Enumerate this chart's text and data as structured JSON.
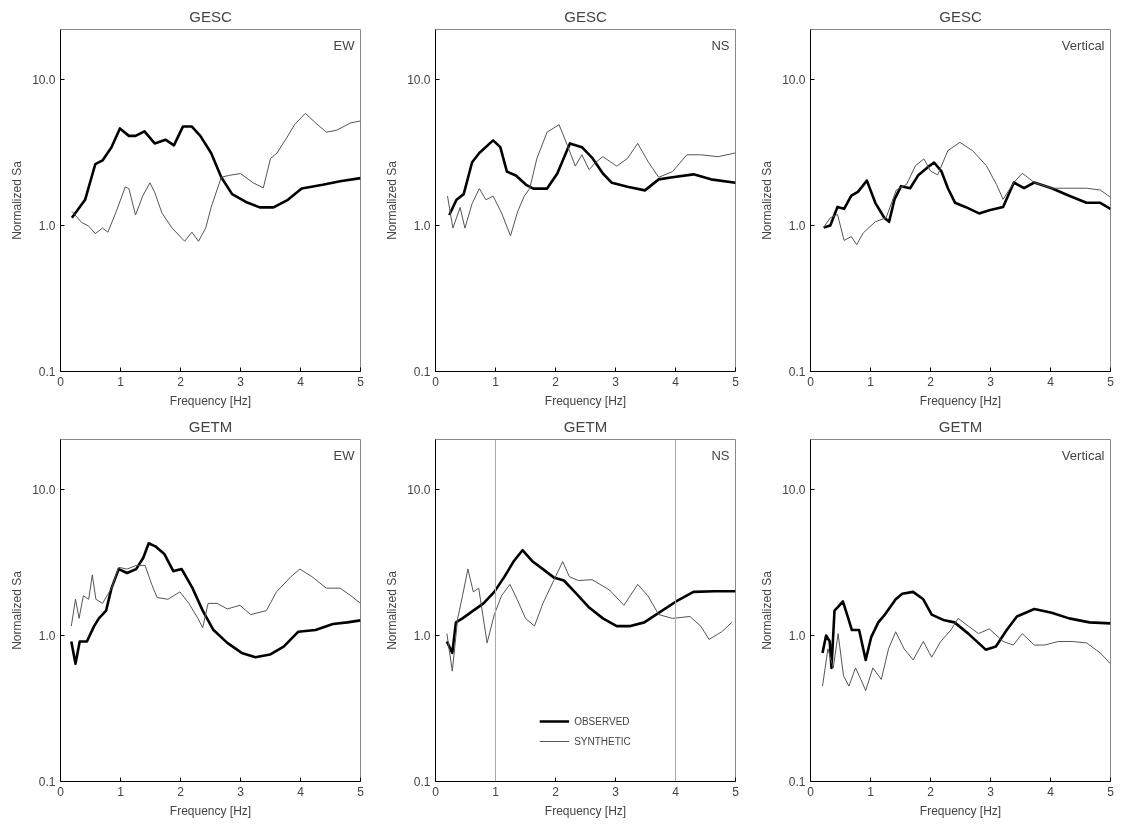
{
  "chart_data": [
    {
      "type": "line",
      "title": "GESC",
      "xlabel": "Frequency [Hz]",
      "ylabel": "Normalized Sa",
      "annotations": [
        "EW"
      ],
      "xlim": [
        0,
        5
      ],
      "ylim": [
        0.1,
        22
      ],
      "xticks": [
        0,
        1,
        2,
        3,
        4,
        5
      ],
      "yticks": [
        {
          "value": 0.1,
          "label": "0.1"
        },
        {
          "value": 1,
          "label": "1.0"
        },
        {
          "value": 10,
          "label": "10.0"
        }
      ],
      "log": true,
      "series": [
        {
          "color": "#000000",
          "x": [
            0.19,
            0.41,
            0.58,
            0.7,
            0.85,
            0.99,
            1.14,
            1.25,
            1.4,
            1.57,
            1.75,
            1.89,
            2.04,
            2.19,
            2.33,
            2.51,
            2.68,
            2.86,
            3.09,
            3.32,
            3.55,
            3.79,
            4.02,
            4.37,
            4.66,
            5.0
          ],
          "values": [
            1.13,
            1.5,
            2.63,
            2.79,
            3.44,
            4.62,
            4.11,
            4.11,
            4.41,
            3.65,
            3.87,
            3.54,
            4.76,
            4.76,
            4.11,
            3.14,
            2.14,
            1.64,
            1.45,
            1.33,
            1.33,
            1.5,
            1.79,
            1.9,
            2.01,
            2.11
          ]
        },
        {
          "color": "#555555",
          "x": [
            0.19,
            0.35,
            0.47,
            0.58,
            0.7,
            0.79,
            0.93,
            1.08,
            1.14,
            1.25,
            1.37,
            1.49,
            1.57,
            1.69,
            1.86,
            2.07,
            2.19,
            2.3,
            2.42,
            2.51,
            2.68,
            2.8,
            3.0,
            3.21,
            3.38,
            3.5,
            3.61,
            3.79,
            3.9,
            4.08,
            4.25,
            4.43,
            4.6,
            4.84,
            5.0
          ],
          "values": [
            1.25,
            1.05,
            0.99,
            0.88,
            0.96,
            0.9,
            1.25,
            1.84,
            1.79,
            1.18,
            1.59,
            1.96,
            1.69,
            1.22,
            0.96,
            0.78,
            0.9,
            0.78,
            0.96,
            1.33,
            2.14,
            2.2,
            2.27,
            1.96,
            1.81,
            2.88,
            3.14,
            4.11,
            4.9,
            5.86,
            5.05,
            4.36,
            4.49,
            5.05,
            5.2
          ]
        }
      ]
    },
    {
      "type": "line",
      "title": "GESC",
      "xlabel": "Frequency [Hz]",
      "ylabel": "Normalized Sa",
      "annotations": [
        "NS"
      ],
      "xlim": [
        0,
        5
      ],
      "ylim": [
        0.1,
        22
      ],
      "xticks": [
        0,
        1,
        2,
        3,
        4,
        5
      ],
      "yticks": [
        {
          "value": 0.1,
          "label": "0.1"
        },
        {
          "value": 1,
          "label": "1.0"
        },
        {
          "value": 10,
          "label": "10.0"
        }
      ],
      "log": true,
      "series": [
        {
          "color": "#000000",
          "x": [
            0.23,
            0.35,
            0.47,
            0.61,
            0.73,
            0.96,
            1.08,
            1.19,
            1.34,
            1.51,
            1.63,
            1.86,
            2.03,
            2.24,
            2.44,
            2.62,
            2.79,
            2.94,
            3.2,
            3.49,
            3.72,
            3.95,
            4.3,
            4.59,
            5.0
          ],
          "values": [
            1.18,
            1.5,
            1.64,
            2.71,
            3.14,
            3.83,
            3.44,
            2.34,
            2.2,
            1.9,
            1.79,
            1.79,
            2.27,
            3.65,
            3.44,
            2.88,
            2.27,
            1.96,
            1.84,
            1.74,
            2.07,
            2.14,
            2.24,
            2.07,
            1.96
          ]
        },
        {
          "color": "#555555",
          "x": [
            0.2,
            0.29,
            0.41,
            0.49,
            0.61,
            0.73,
            0.84,
            0.96,
            1.1,
            1.25,
            1.37,
            1.48,
            1.57,
            1.69,
            1.86,
            2.06,
            2.21,
            2.33,
            2.44,
            2.56,
            2.67,
            2.79,
            3.02,
            3.2,
            3.37,
            3.55,
            3.72,
            3.95,
            4.19,
            4.42,
            4.71,
            5.0
          ],
          "values": [
            1.59,
            0.96,
            1.33,
            0.96,
            1.41,
            1.79,
            1.5,
            1.59,
            1.22,
            0.85,
            1.25,
            1.59,
            1.79,
            2.88,
            4.36,
            4.9,
            3.44,
            2.55,
            3.05,
            2.41,
            2.71,
            2.96,
            2.55,
            2.88,
            3.65,
            2.71,
            2.14,
            2.34,
            3.05,
            3.05,
            2.96,
            3.14
          ]
        }
      ]
    },
    {
      "type": "line",
      "title": "GESC",
      "xlabel": "Frequency [Hz]",
      "ylabel": "Normalized Sa",
      "annotations": [
        "Vertical"
      ],
      "xlim": [
        0,
        5
      ],
      "ylim": [
        0.1,
        22
      ],
      "xticks": [
        0,
        1,
        2,
        3,
        4,
        5
      ],
      "yticks": [
        {
          "value": 0.1,
          "label": "0.1"
        },
        {
          "value": 1,
          "label": "1.0"
        },
        {
          "value": 10,
          "label": "10.0"
        }
      ],
      "log": true,
      "series": [
        {
          "color": "#000000",
          "x": [
            0.22,
            0.33,
            0.45,
            0.56,
            0.68,
            0.79,
            0.94,
            1.08,
            1.23,
            1.31,
            1.4,
            1.51,
            1.66,
            1.8,
            1.95,
            2.06,
            2.18,
            2.29,
            2.41,
            2.58,
            2.81,
            2.98,
            3.21,
            3.39,
            3.56,
            3.73,
            4.02,
            4.31,
            4.6,
            4.83,
            5.0
          ],
          "values": [
            0.97,
            1.0,
            1.34,
            1.3,
            1.6,
            1.7,
            2.03,
            1.43,
            1.13,
            1.06,
            1.51,
            1.86,
            1.8,
            2.22,
            2.5,
            2.7,
            2.36,
            1.8,
            1.43,
            1.34,
            1.21,
            1.27,
            1.34,
            1.97,
            1.8,
            1.97,
            1.8,
            1.6,
            1.43,
            1.43,
            1.3
          ]
        },
        {
          "color": "#555555",
          "x": [
            0.22,
            0.33,
            0.45,
            0.56,
            0.68,
            0.77,
            0.88,
            1.08,
            1.26,
            1.43,
            1.6,
            1.75,
            1.89,
            2.0,
            2.12,
            2.29,
            2.49,
            2.7,
            2.93,
            3.1,
            3.21,
            3.39,
            3.53,
            3.73,
            4.02,
            4.31,
            4.6,
            4.83,
            5.0
          ],
          "values": [
            0.97,
            1.13,
            1.19,
            0.79,
            0.84,
            0.74,
            0.89,
            1.06,
            1.13,
            1.75,
            1.91,
            2.57,
            2.86,
            2.36,
            2.22,
            3.26,
            3.71,
            3.26,
            2.57,
            1.91,
            1.51,
            1.97,
            2.28,
            1.97,
            1.8,
            1.8,
            1.8,
            1.75,
            1.56
          ]
        }
      ]
    },
    {
      "type": "line",
      "title": "GETM",
      "xlabel": "Frequency [Hz]",
      "ylabel": "Normalized Sa",
      "annotations": [
        "EW"
      ],
      "xlim": [
        0,
        5
      ],
      "ylim": [
        0.1,
        22
      ],
      "xticks": [
        0,
        1,
        2,
        3,
        4,
        5
      ],
      "yticks": [
        {
          "value": 0.1,
          "label": "0.1"
        },
        {
          "value": 1,
          "label": "1.0"
        },
        {
          "value": 10,
          "label": "10.0"
        }
      ],
      "log": true,
      "series": [
        {
          "color": "#000000",
          "x": [
            0.18,
            0.25,
            0.32,
            0.44,
            0.56,
            0.64,
            0.76,
            0.85,
            0.97,
            1.11,
            1.26,
            1.38,
            1.47,
            1.58,
            1.73,
            1.88,
            2.02,
            2.2,
            2.37,
            2.55,
            2.78,
            3.02,
            3.25,
            3.49,
            3.72,
            3.96,
            4.25,
            4.54,
            4.78,
            5.0
          ],
          "values": [
            0.91,
            0.64,
            0.91,
            0.91,
            1.16,
            1.31,
            1.48,
            2.11,
            2.85,
            2.68,
            2.85,
            3.41,
            4.28,
            4.08,
            3.62,
            2.76,
            2.85,
            2.11,
            1.48,
            1.09,
            0.89,
            0.76,
            0.71,
            0.74,
            0.84,
            1.06,
            1.09,
            1.2,
            1.23,
            1.27
          ]
        },
        {
          "color": "#555555",
          "x": [
            0.18,
            0.25,
            0.31,
            0.38,
            0.47,
            0.53,
            0.59,
            0.7,
            0.85,
            0.97,
            1.11,
            1.26,
            1.41,
            1.52,
            1.61,
            1.79,
            1.99,
            2.14,
            2.29,
            2.37,
            2.46,
            2.61,
            2.78,
            2.99,
            3.17,
            3.43,
            3.6,
            3.84,
            3.99,
            4.19,
            4.43,
            4.66,
            4.84,
            5.0
          ],
          "values": [
            1.16,
            1.77,
            1.31,
            1.87,
            1.77,
            2.6,
            1.77,
            1.66,
            2.11,
            2.93,
            2.85,
            3.02,
            3.02,
            2.24,
            1.82,
            1.77,
            1.99,
            1.66,
            1.31,
            1.13,
            1.66,
            1.66,
            1.52,
            1.61,
            1.39,
            1.48,
            1.99,
            2.53,
            2.85,
            2.53,
            2.11,
            2.11,
            1.87,
            1.66
          ]
        }
      ]
    },
    {
      "type": "line",
      "title": "GETM",
      "xlabel": "Frequency [Hz]",
      "ylabel": "Normalized Sa",
      "annotations": [
        "NS"
      ],
      "xlim": [
        0,
        5
      ],
      "ylim": [
        0.1,
        22
      ],
      "xticks": [
        0,
        1,
        2,
        3,
        4,
        5
      ],
      "yticks": [
        {
          "value": 0.1,
          "label": "0.1"
        },
        {
          "value": 1,
          "label": "1.0"
        },
        {
          "value": 10,
          "label": "10.0"
        }
      ],
      "log": true,
      "legend": "bottom",
      "ref_lines": [
        {
          "axis": "x",
          "value": 1,
          "color": "#aaaaaa"
        },
        {
          "axis": "x",
          "value": 4,
          "color": "#aaaaaa"
        }
      ],
      "series": [
        {
          "name": "OBSERVED",
          "color": "#000000",
          "x": [
            0.19,
            0.28,
            0.34,
            0.45,
            0.63,
            0.8,
            0.98,
            1.15,
            1.3,
            1.45,
            1.62,
            1.79,
            1.97,
            2.14,
            2.32,
            2.55,
            2.79,
            3.02,
            3.25,
            3.48,
            3.72,
            4.01,
            4.3,
            4.65,
            5.0
          ],
          "values": [
            0.91,
            0.76,
            1.23,
            1.31,
            1.48,
            1.66,
            1.99,
            2.53,
            3.21,
            3.84,
            3.21,
            2.85,
            2.5,
            2.38,
            1.99,
            1.57,
            1.31,
            1.16,
            1.16,
            1.23,
            1.43,
            1.71,
            1.99,
            2.01,
            2.01
          ]
        },
        {
          "name": "SYNTHETIC",
          "color": "#555555",
          "x": [
            0.19,
            0.28,
            0.37,
            0.45,
            0.54,
            0.63,
            0.72,
            0.86,
            0.98,
            1.1,
            1.24,
            1.36,
            1.5,
            1.65,
            1.79,
            1.97,
            2.12,
            2.23,
            2.38,
            2.61,
            2.9,
            3.14,
            3.37,
            3.54,
            3.72,
            3.95,
            4.24,
            4.42,
            4.56,
            4.77,
            4.94
          ],
          "values": [
            1.03,
            0.57,
            1.31,
            1.87,
            2.85,
            1.99,
            2.11,
            0.89,
            1.39,
            1.87,
            2.24,
            1.77,
            1.31,
            1.16,
            1.66,
            2.38,
            3.21,
            2.53,
            2.38,
            2.41,
            2.05,
            1.61,
            2.24,
            1.87,
            1.39,
            1.31,
            1.35,
            1.16,
            0.94,
            1.06,
            1.23
          ]
        }
      ]
    },
    {
      "type": "line",
      "title": "GETM",
      "xlabel": "Frequency [Hz]",
      "ylabel": "Normalized Sa",
      "annotations": [
        "Vertical"
      ],
      "xlim": [
        0,
        5
      ],
      "ylim": [
        0.1,
        22
      ],
      "xticks": [
        0,
        1,
        2,
        3,
        4,
        5
      ],
      "yticks": [
        {
          "value": 0.1,
          "label": "0.1"
        },
        {
          "value": 1,
          "label": "1.0"
        },
        {
          "value": 10,
          "label": "10.0"
        }
      ],
      "log": true,
      "series": [
        {
          "color": "#000000",
          "x": [
            0.2,
            0.26,
            0.32,
            0.35,
            0.4,
            0.46,
            0.54,
            0.61,
            0.69,
            0.81,
            0.92,
            1.01,
            1.13,
            1.24,
            1.42,
            1.53,
            1.71,
            1.88,
            2.02,
            2.23,
            2.4,
            2.63,
            2.92,
            3.09,
            3.27,
            3.44,
            3.73,
            4.02,
            4.31,
            4.65,
            5.0
          ],
          "values": [
            0.76,
            1.0,
            0.91,
            0.6,
            1.48,
            1.57,
            1.71,
            1.39,
            1.09,
            1.09,
            0.68,
            0.97,
            1.23,
            1.39,
            1.77,
            1.93,
            1.99,
            1.77,
            1.39,
            1.27,
            1.23,
            1.03,
            0.8,
            0.84,
            1.09,
            1.35,
            1.52,
            1.43,
            1.31,
            1.23,
            1.21
          ]
        },
        {
          "color": "#555555",
          "x": [
            0.2,
            0.29,
            0.38,
            0.46,
            0.55,
            0.64,
            0.75,
            0.84,
            0.92,
            1.04,
            1.18,
            1.3,
            1.42,
            1.56,
            1.71,
            1.88,
            2.02,
            2.17,
            2.34,
            2.46,
            2.63,
            2.8,
            2.98,
            3.21,
            3.38,
            3.53,
            3.73,
            3.9,
            4.13,
            4.36,
            4.6,
            4.83,
            5.0
          ],
          "values": [
            0.45,
            0.81,
            0.6,
            1.03,
            0.53,
            0.45,
            0.6,
            0.5,
            0.42,
            0.6,
            0.5,
            0.81,
            1.06,
            0.81,
            0.68,
            0.91,
            0.71,
            0.91,
            1.09,
            1.31,
            1.16,
            1.03,
            1.11,
            0.91,
            0.86,
            1.03,
            0.86,
            0.86,
            0.91,
            0.91,
            0.89,
            0.76,
            0.64
          ]
        }
      ]
    }
  ]
}
